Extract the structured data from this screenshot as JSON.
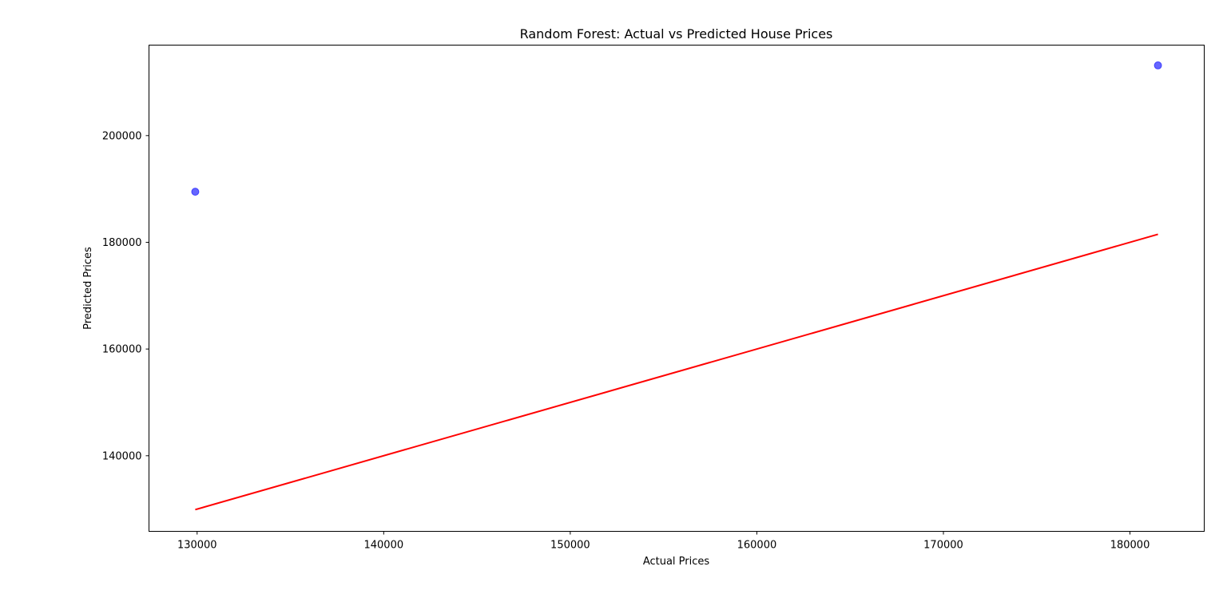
{
  "chart_data": {
    "type": "scatter",
    "title": "Random Forest: Actual vs Predicted House Prices",
    "xlabel": "Actual Prices",
    "ylabel": "Predicted Prices",
    "xlim": [
      127420,
      183980
    ],
    "ylim": [
      125831,
      216956
    ],
    "x_ticks": [
      130000,
      140000,
      150000,
      160000,
      170000,
      180000
    ],
    "y_ticks": [
      140000,
      160000,
      180000,
      200000
    ],
    "points": [
      {
        "x": 129900,
        "y": 189476
      },
      {
        "x": 181500,
        "y": 213152
      }
    ],
    "reference_line": {
      "x": [
        129900,
        181500
      ],
      "y": [
        129900,
        181500
      ],
      "color": "#ff0000"
    },
    "point_color": "#0000ff",
    "grid": false,
    "legend": "none"
  }
}
